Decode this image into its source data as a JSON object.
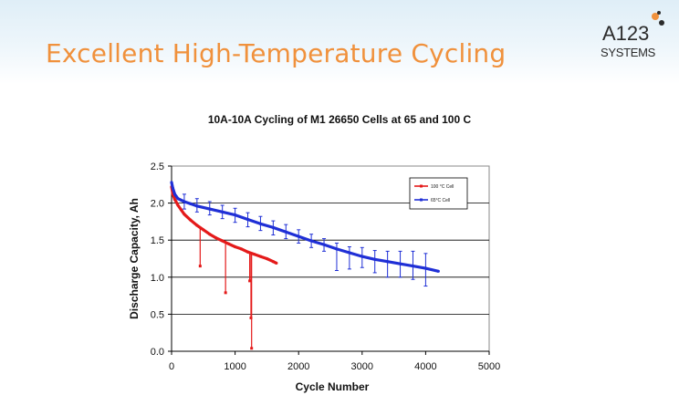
{
  "slide": {
    "title": "Excellent High-Temperature Cycling",
    "title_color": "#f0913c"
  },
  "logo": {
    "line1": "A123",
    "line2": "SYSTEMS",
    "dot_colors": [
      "#f0913c",
      "#2b2b2b"
    ]
  },
  "chart_data": {
    "type": "line",
    "title": "10A-10A Cycling of M1 26650 Cells at 65 and 100 C",
    "xlabel": "Cycle Number",
    "ylabel": "Discharge Capacity, Ah",
    "xlim": [
      0,
      5000
    ],
    "ylim": [
      0,
      2.5
    ],
    "xticks": [
      0,
      1000,
      2000,
      3000,
      4000,
      5000
    ],
    "yticks": [
      0.0,
      0.5,
      1.0,
      1.5,
      2.0,
      2.5
    ],
    "ytick_labels": [
      "0.0",
      "0.5",
      "1.0",
      "1.5",
      "2.0",
      "2.5"
    ],
    "grid": "horizontal",
    "legend_position": "top-right",
    "series": [
      {
        "name": "100 °C Cell",
        "color": "#e41a1a",
        "x": [
          0,
          20,
          50,
          100,
          150,
          200,
          300,
          400,
          500,
          600,
          700,
          800,
          900,
          1000,
          1100,
          1200,
          1300,
          1400,
          1500,
          1600,
          1650
        ],
        "y": [
          2.22,
          2.12,
          2.05,
          1.97,
          1.91,
          1.85,
          1.77,
          1.7,
          1.64,
          1.58,
          1.53,
          1.49,
          1.45,
          1.41,
          1.38,
          1.34,
          1.31,
          1.28,
          1.25,
          1.21,
          1.19
        ],
        "dips": [
          {
            "x": 450,
            "y": 1.15
          },
          {
            "x": 850,
            "y": 0.79
          },
          {
            "x": 1230,
            "y": 0.95
          },
          {
            "x": 1250,
            "y": 0.45
          },
          {
            "x": 1260,
            "y": 0.04
          }
        ]
      },
      {
        "name": "65°C Cell",
        "color": "#1f2fd6",
        "x": [
          0,
          20,
          50,
          100,
          200,
          300,
          400,
          600,
          800,
          1000,
          1200,
          1400,
          1600,
          1800,
          2000,
          2200,
          2400,
          2600,
          2800,
          3000,
          3200,
          3400,
          3600,
          3800,
          4000,
          4200
        ],
        "y": [
          2.28,
          2.2,
          2.12,
          2.06,
          2.02,
          1.99,
          1.96,
          1.92,
          1.88,
          1.84,
          1.78,
          1.72,
          1.67,
          1.61,
          1.55,
          1.49,
          1.44,
          1.38,
          1.33,
          1.28,
          1.24,
          1.21,
          1.18,
          1.15,
          1.12,
          1.08
        ],
        "error_bars": [
          {
            "x": 200,
            "low": 1.92,
            "high": 2.12
          },
          {
            "x": 400,
            "low": 1.88,
            "high": 2.06
          },
          {
            "x": 600,
            "low": 1.84,
            "high": 2.02
          },
          {
            "x": 800,
            "low": 1.79,
            "high": 1.97
          },
          {
            "x": 1000,
            "low": 1.74,
            "high": 1.93
          },
          {
            "x": 1200,
            "low": 1.68,
            "high": 1.87
          },
          {
            "x": 1400,
            "low": 1.63,
            "high": 1.82
          },
          {
            "x": 1600,
            "low": 1.57,
            "high": 1.76
          },
          {
            "x": 1800,
            "low": 1.52,
            "high": 1.71
          },
          {
            "x": 2000,
            "low": 1.46,
            "high": 1.64
          },
          {
            "x": 2200,
            "low": 1.4,
            "high": 1.58
          },
          {
            "x": 2400,
            "low": 1.35,
            "high": 1.52
          },
          {
            "x": 2600,
            "low": 1.09,
            "high": 1.46
          },
          {
            "x": 2800,
            "low": 1.11,
            "high": 1.41
          },
          {
            "x": 3000,
            "low": 1.13,
            "high": 1.4
          },
          {
            "x": 3200,
            "low": 1.06,
            "high": 1.36
          },
          {
            "x": 3400,
            "low": 1.0,
            "high": 1.35
          },
          {
            "x": 3600,
            "low": 1.0,
            "high": 1.35
          },
          {
            "x": 3800,
            "low": 0.97,
            "high": 1.35
          },
          {
            "x": 4000,
            "low": 0.88,
            "high": 1.32
          }
        ]
      }
    ]
  }
}
